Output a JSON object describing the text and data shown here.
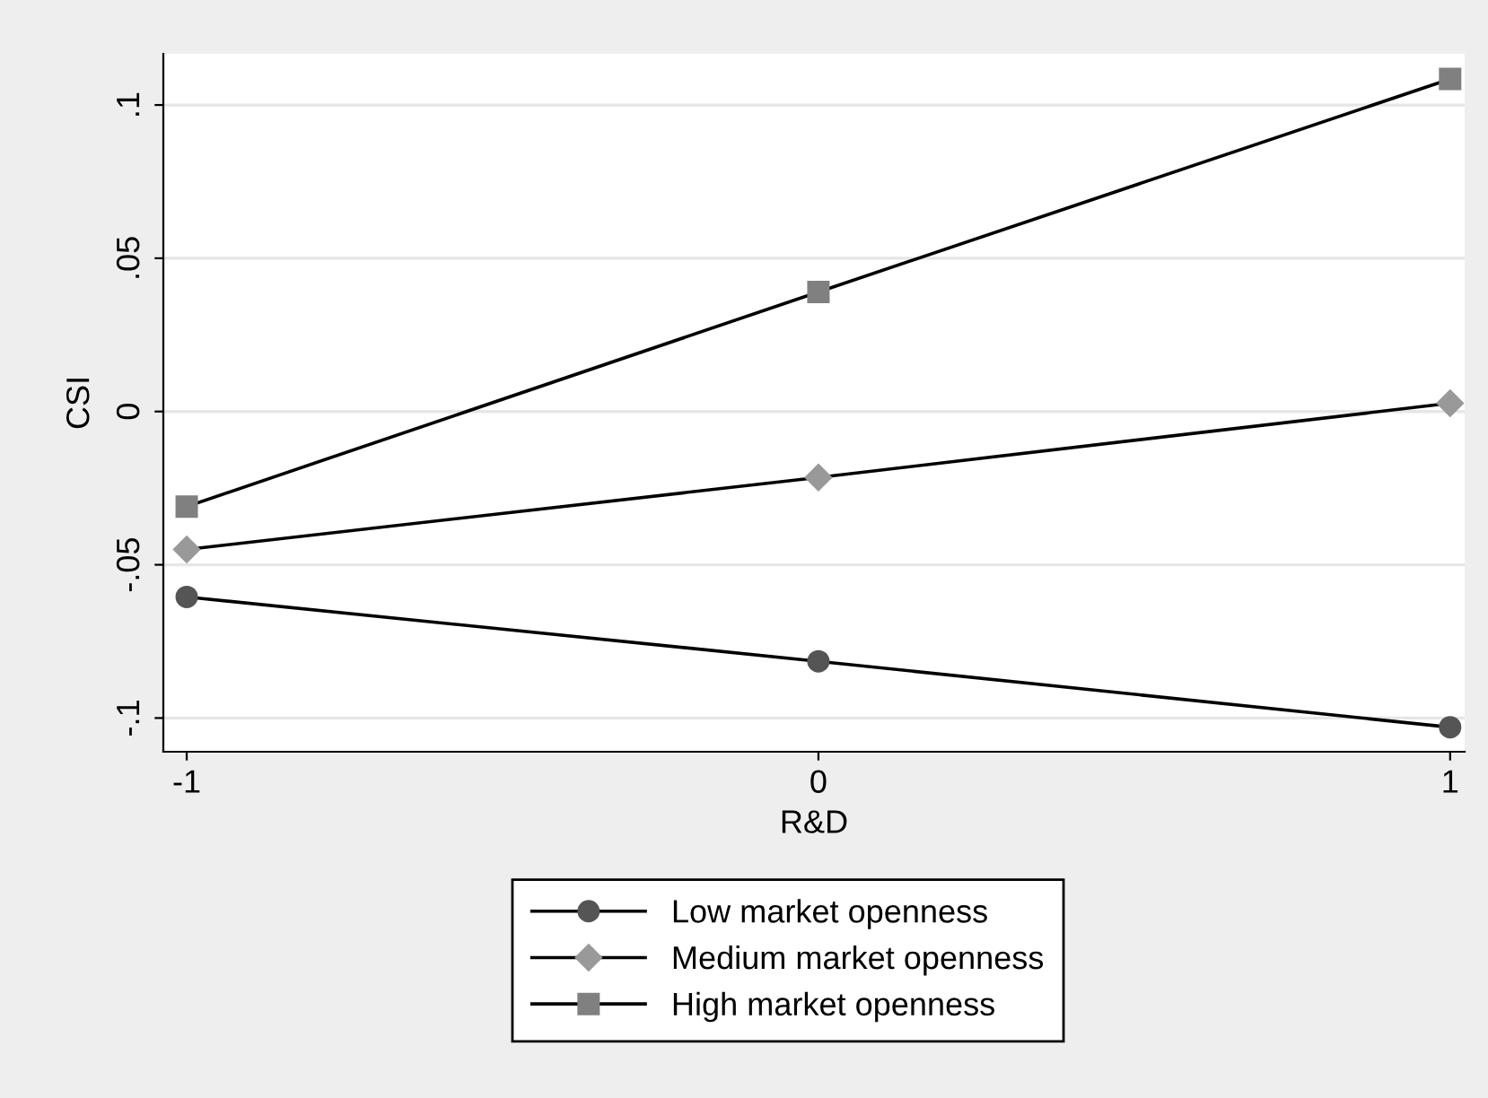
{
  "chart_data": {
    "type": "line",
    "xlabel": "R&D",
    "ylabel": "CSI",
    "x": [
      -1,
      0,
      1
    ],
    "series": [
      {
        "name": "Low market openness",
        "color": "#555555",
        "marker": "circle",
        "values": [
          -0.0605,
          -0.0815,
          -0.103
        ]
      },
      {
        "name": "Medium market openness",
        "color": "#999999",
        "marker": "diamond",
        "values": [
          -0.045,
          -0.0215,
          0.0027
        ]
      },
      {
        "name": "High market openness",
        "color": "#808080",
        "marker": "square",
        "values": [
          -0.031,
          0.039,
          0.1085
        ]
      }
    ],
    "xlim": [
      -1.037,
      1.023
    ],
    "xticks": [
      -1,
      0,
      1
    ],
    "ylim": [
      -0.111,
      0.1167
    ],
    "yticks": [
      {
        "value": -0.1,
        "label": "-.1"
      },
      {
        "value": -0.05,
        "label": "-.05"
      },
      {
        "value": 0,
        "label": "0"
      },
      {
        "value": 0.05,
        "label": ".05"
      },
      {
        "value": 0.1,
        "label": ".1"
      }
    ],
    "grid": "y",
    "legend": "bottom",
    "line_style": "solid"
  }
}
